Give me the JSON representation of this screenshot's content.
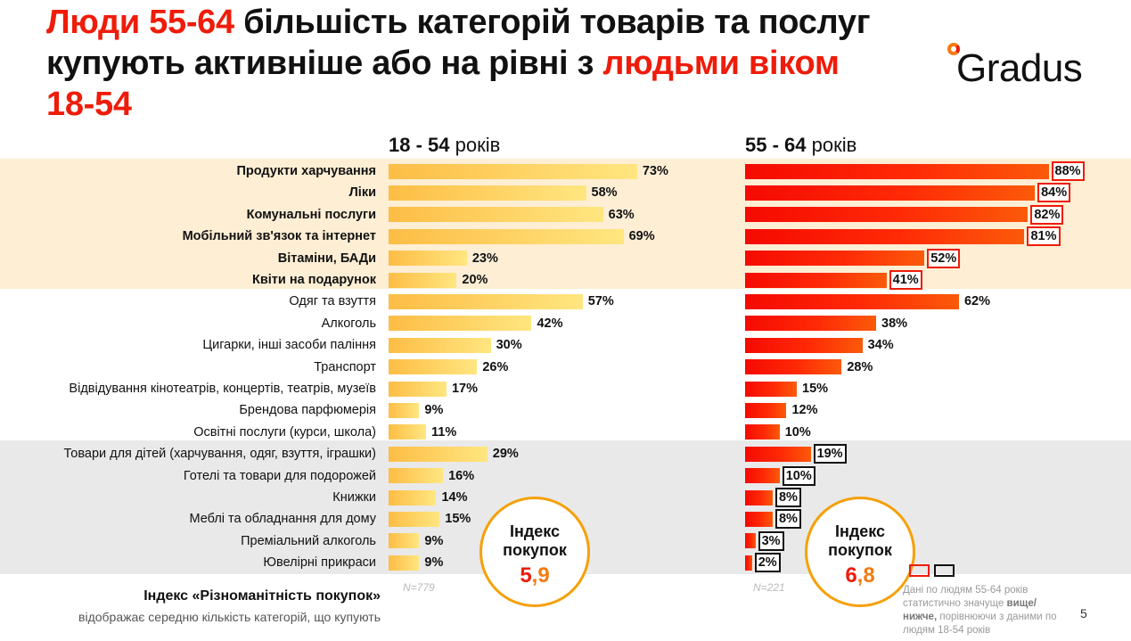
{
  "title": {
    "red1": "Люди 55-64",
    "black1": " більшість категорій товарів та послуг купують активніше або на рівні з ",
    "red2": "людьми віком 18-54"
  },
  "logo": "Gradus",
  "col_left": {
    "bold": "18 - 54",
    "rest": " років"
  },
  "col_right": {
    "bold": "55 - 64",
    "rest": " років"
  },
  "chart_data": {
    "type": "bar",
    "categories": [
      "Продукти харчування",
      "Ліки",
      "Комунальні послуги",
      "Мобільний зв'язок та інтернет",
      "Вітаміни, БАДи",
      "Квіти на подарунок",
      "Одяг та взуття",
      "Алкоголь",
      "Цигарки, інші засоби паління",
      "Транспорт",
      "Відвідування кінотеатрів, концертів, театрів, музеїв",
      "Брендова парфюмерія",
      "Освітні послуги (курси, школа)",
      "Товари для дітей (харчування, одяг, взуття, іграшки)",
      "Готелі та товари для подорожей",
      "Книжки",
      "Меблі та обладнання для дому",
      "Преміальний алкоголь",
      "Ювелірні прикраси"
    ],
    "bold_categories": [
      true,
      true,
      true,
      true,
      true,
      true,
      false,
      false,
      false,
      false,
      false,
      false,
      false,
      false,
      false,
      false,
      false,
      false,
      false
    ],
    "series": [
      {
        "name": "18 - 54 років",
        "values": [
          73,
          58,
          63,
          69,
          23,
          20,
          57,
          42,
          30,
          26,
          17,
          9,
          11,
          29,
          16,
          14,
          15,
          9,
          9
        ]
      },
      {
        "name": "55 - 64 років",
        "values": [
          88,
          84,
          82,
          81,
          52,
          41,
          62,
          38,
          34,
          28,
          15,
          12,
          10,
          19,
          10,
          8,
          8,
          3,
          2
        ]
      }
    ],
    "significance_55_64": [
      "higher",
      "higher",
      "higher",
      "higher",
      "higher",
      "higher",
      "none",
      "none",
      "none",
      "none",
      "none",
      "none",
      "none",
      "lower",
      "lower",
      "lower",
      "lower",
      "lower",
      "lower"
    ],
    "value_suffix": "%",
    "n_left": "N=779",
    "n_right": "N=221",
    "xlim": [
      0,
      100
    ]
  },
  "index_left": {
    "label_line1": "Індекс",
    "label_line2": "покупок",
    "int": "5",
    "dec": ",9"
  },
  "index_right": {
    "label_line1": "Індекс",
    "label_line2": "покупок",
    "int": "6",
    "dec": ",8"
  },
  "footer": {
    "bold": "Індекс «Різноманітність покупок»",
    "sub": "відображає середню кількість категорій, що купують"
  },
  "note": {
    "part1": "Дані по людям 55-64 років статистично значуще ",
    "bold": "вище/нижче,",
    "part2": " порівнюючи з даними по людям 18-54 років"
  },
  "colors": {
    "accent_red": "#ee1c0a",
    "accent_orange": "#f47a12",
    "left_bar": "#fdbd45",
    "band_beige": "#fdeed4",
    "band_gray": "#e9e9e9"
  },
  "page_number": "5"
}
